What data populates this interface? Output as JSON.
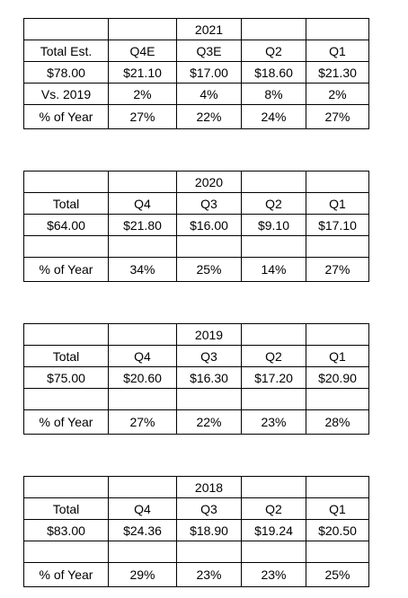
{
  "tables": [
    {
      "year": "2021",
      "rows": [
        [
          "Total Est.",
          "Q4E",
          "Q3E",
          "Q2",
          "Q1"
        ],
        [
          "$78.00",
          "$21.10",
          "$17.00",
          "$18.60",
          "$21.30"
        ],
        [
          "Vs. 2019",
          "2%",
          "4%",
          "8%",
          "2%"
        ],
        [
          "% of Year",
          "27%",
          "22%",
          "24%",
          "27%"
        ]
      ]
    },
    {
      "year": "2020",
      "rows": [
        [
          "Total",
          "Q4",
          "Q3",
          "Q2",
          "Q1"
        ],
        [
          "$64.00",
          "$21.80",
          "$16.00",
          "$9.10",
          "$17.10"
        ],
        [
          "% of Year",
          "34%",
          "25%",
          "14%",
          "27%"
        ]
      ]
    },
    {
      "year": "2019",
      "rows": [
        [
          "Total",
          "Q4",
          "Q3",
          "Q2",
          "Q1"
        ],
        [
          "$75.00",
          "$20.60",
          "$16.30",
          "$17.20",
          "$20.90"
        ],
        [
          "% of Year",
          "27%",
          "22%",
          "23%",
          "28%"
        ]
      ]
    },
    {
      "year": "2018",
      "rows": [
        [
          "Total",
          "Q4",
          "Q3",
          "Q2",
          "Q1"
        ],
        [
          "$83.00",
          "$24.36",
          "$18.90",
          "$19.24",
          "$20.50"
        ],
        [
          "% of Year",
          "29%",
          "23%",
          "23%",
          "25%"
        ]
      ]
    }
  ]
}
